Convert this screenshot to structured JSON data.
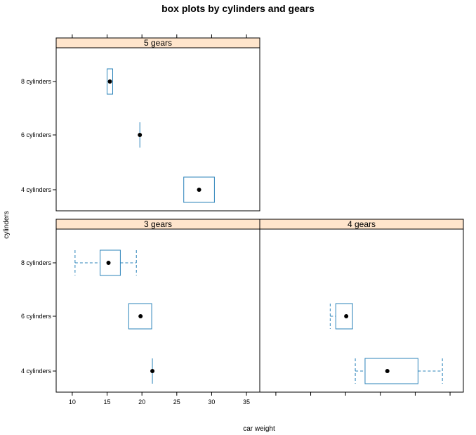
{
  "chart_data": {
    "type": "boxplot",
    "title": "box plots by cylinders and gears",
    "xlabel": "car weight",
    "ylabel": "cylinders",
    "xlim": [
      8.8,
      35.8
    ],
    "xticks": [
      10,
      15,
      20,
      25,
      30,
      35
    ],
    "categories": [
      "4 cylinders",
      "6 cylinders",
      "8 cylinders"
    ],
    "panels": [
      {
        "strip": "5 gears",
        "boxes": [
          {
            "category": "8 cylinders",
            "min": 15.0,
            "q1": 15.0,
            "median": 15.4,
            "q3": 15.8,
            "max": 15.8
          },
          {
            "category": "6 cylinders",
            "min": 19.7,
            "q1": 19.7,
            "median": 19.7,
            "q3": 19.7,
            "max": 19.7
          },
          {
            "category": "4 cylinders",
            "min": 26.0,
            "q1": 26.0,
            "median": 28.2,
            "q3": 30.4,
            "max": 30.4
          }
        ]
      },
      {
        "strip": "3 gears",
        "boxes": [
          {
            "category": "8 cylinders",
            "min": 10.4,
            "q1": 14.0,
            "median": 15.2,
            "q3": 16.9,
            "max": 19.2
          },
          {
            "category": "6 cylinders",
            "min": 18.1,
            "q1": 18.1,
            "median": 19.8,
            "q3": 21.4,
            "max": 21.4
          },
          {
            "category": "4 cylinders",
            "min": 21.5,
            "q1": 21.5,
            "median": 21.5,
            "q3": 21.5,
            "max": 21.5
          }
        ]
      },
      {
        "strip": "4 gears",
        "boxes": [
          {
            "category": "6 cylinders",
            "min": 17.8,
            "q1": 18.6,
            "median": 20.1,
            "q3": 21.0,
            "max": 21.0
          },
          {
            "category": "4 cylinders",
            "min": 21.4,
            "q1": 22.8,
            "median": 26.0,
            "q3": 30.4,
            "max": 33.9
          }
        ]
      }
    ],
    "colors": {
      "box": "#2b83ba",
      "median_dot": "#000000",
      "strip_bg": "#ffe5cc",
      "frame": "#000000"
    }
  }
}
